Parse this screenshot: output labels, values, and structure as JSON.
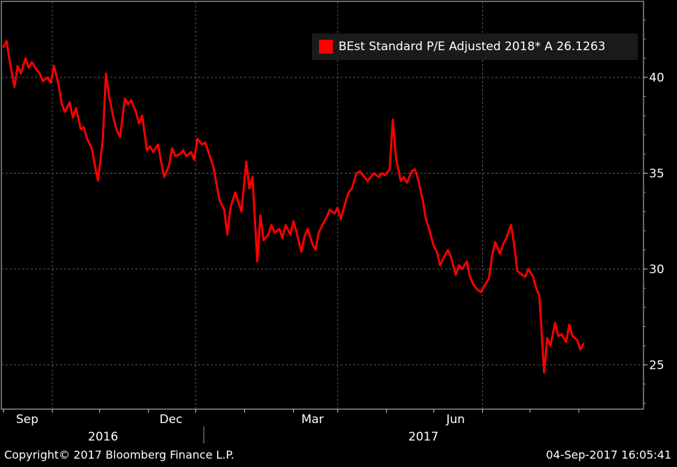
{
  "chart_data": {
    "type": "line",
    "title": "",
    "xlabel": "",
    "ylabel": "",
    "ylim": [
      22.5,
      43.5
    ],
    "y_ticks": [
      25,
      30,
      35,
      40
    ],
    "x_tick_labels": [
      "Sep",
      "Dec",
      "Mar",
      "Jun"
    ],
    "year_labels": [
      "2016",
      "2017"
    ],
    "grid": true,
    "legend_position": "top-right",
    "series": [
      {
        "name": "BEst Standard P/E Adjusted 2018* A 26.1263",
        "color": "#ff0000",
        "points": [
          [
            "2016-08-01",
            41.6
          ],
          [
            "2016-08-03",
            41.9
          ],
          [
            "2016-08-05",
            40.8
          ],
          [
            "2016-08-08",
            39.5
          ],
          [
            "2016-08-10",
            40.6
          ],
          [
            "2016-08-12",
            40.2
          ],
          [
            "2016-08-15",
            41.0
          ],
          [
            "2016-08-17",
            40.5
          ],
          [
            "2016-08-19",
            40.8
          ],
          [
            "2016-08-22",
            40.4
          ],
          [
            "2016-08-24",
            40.2
          ],
          [
            "2016-08-26",
            39.8
          ],
          [
            "2016-08-29",
            40.0
          ],
          [
            "2016-08-31",
            39.7
          ],
          [
            "2016-09-02",
            40.6
          ],
          [
            "2016-09-05",
            39.6
          ],
          [
            "2016-09-07",
            38.6
          ],
          [
            "2016-09-09",
            38.2
          ],
          [
            "2016-09-12",
            38.7
          ],
          [
            "2016-09-14",
            37.9
          ],
          [
            "2016-09-16",
            38.4
          ],
          [
            "2016-09-19",
            37.3
          ],
          [
            "2016-09-21",
            37.4
          ],
          [
            "2016-09-23",
            36.8
          ],
          [
            "2016-09-26",
            36.3
          ],
          [
            "2016-09-28",
            35.4
          ],
          [
            "2016-09-30",
            34.6
          ],
          [
            "2016-10-03",
            36.8
          ],
          [
            "2016-10-05",
            40.2
          ],
          [
            "2016-10-07",
            39.0
          ],
          [
            "2016-10-10",
            37.8
          ],
          [
            "2016-10-12",
            37.2
          ],
          [
            "2016-10-14",
            36.9
          ],
          [
            "2016-10-17",
            38.9
          ],
          [
            "2016-10-19",
            38.6
          ],
          [
            "2016-10-21",
            38.8
          ],
          [
            "2016-10-24",
            38.2
          ],
          [
            "2016-10-26",
            37.6
          ],
          [
            "2016-10-28",
            38.0
          ],
          [
            "2016-10-31",
            36.2
          ],
          [
            "2016-11-02",
            36.4
          ],
          [
            "2016-11-04",
            36.1
          ],
          [
            "2016-11-07",
            36.5
          ],
          [
            "2016-11-09",
            35.6
          ],
          [
            "2016-11-11",
            34.8
          ],
          [
            "2016-11-14",
            35.4
          ],
          [
            "2016-11-16",
            36.3
          ],
          [
            "2016-11-18",
            35.9
          ],
          [
            "2016-11-21",
            36.0
          ],
          [
            "2016-11-23",
            36.2
          ],
          [
            "2016-11-25",
            35.9
          ],
          [
            "2016-11-28",
            36.1
          ],
          [
            "2016-11-30",
            35.7
          ],
          [
            "2016-12-02",
            36.8
          ],
          [
            "2016-12-05",
            36.5
          ],
          [
            "2016-12-07",
            36.6
          ],
          [
            "2016-12-09",
            36.1
          ],
          [
            "2016-12-12",
            35.4
          ],
          [
            "2016-12-14",
            34.5
          ],
          [
            "2016-12-16",
            33.6
          ],
          [
            "2016-12-19",
            33.1
          ],
          [
            "2016-12-21",
            31.8
          ],
          [
            "2016-12-23",
            33.2
          ],
          [
            "2016-12-26",
            34.0
          ],
          [
            "2016-12-28",
            33.5
          ],
          [
            "2016-12-30",
            33.0
          ],
          [
            "2017-01-02",
            35.6
          ],
          [
            "2017-01-04",
            34.2
          ],
          [
            "2017-01-06",
            34.8
          ],
          [
            "2017-01-09",
            30.4
          ],
          [
            "2017-01-11",
            32.8
          ],
          [
            "2017-01-13",
            31.5
          ],
          [
            "2017-01-16",
            31.8
          ],
          [
            "2017-01-18",
            32.3
          ],
          [
            "2017-01-20",
            31.9
          ],
          [
            "2017-01-23",
            32.1
          ],
          [
            "2017-01-25",
            31.6
          ],
          [
            "2017-01-27",
            32.3
          ],
          [
            "2017-01-30",
            31.8
          ],
          [
            "2017-02-01",
            32.5
          ],
          [
            "2017-02-03",
            31.9
          ],
          [
            "2017-02-06",
            30.9
          ],
          [
            "2017-02-08",
            31.7
          ],
          [
            "2017-02-10",
            32.1
          ],
          [
            "2017-02-13",
            31.3
          ],
          [
            "2017-02-15",
            31.0
          ],
          [
            "2017-02-17",
            31.9
          ],
          [
            "2017-02-20",
            32.4
          ],
          [
            "2017-02-22",
            32.7
          ],
          [
            "2017-02-24",
            33.1
          ],
          [
            "2017-02-27",
            32.9
          ],
          [
            "2017-03-01",
            33.2
          ],
          [
            "2017-03-03",
            32.6
          ],
          [
            "2017-03-06",
            33.5
          ],
          [
            "2017-03-08",
            34.0
          ],
          [
            "2017-03-10",
            34.2
          ],
          [
            "2017-03-13",
            35.0
          ],
          [
            "2017-03-15",
            35.1
          ],
          [
            "2017-03-17",
            34.9
          ],
          [
            "2017-03-20",
            34.6
          ],
          [
            "2017-03-22",
            34.8
          ],
          [
            "2017-03-24",
            35.0
          ],
          [
            "2017-03-27",
            34.8
          ],
          [
            "2017-03-29",
            35.0
          ],
          [
            "2017-03-31",
            34.9
          ],
          [
            "2017-04-03",
            35.2
          ],
          [
            "2017-04-05",
            37.8
          ],
          [
            "2017-04-07",
            35.8
          ],
          [
            "2017-04-10",
            34.6
          ],
          [
            "2017-04-12",
            34.8
          ],
          [
            "2017-04-14",
            34.5
          ],
          [
            "2017-04-17",
            35.1
          ],
          [
            "2017-04-19",
            35.2
          ],
          [
            "2017-04-21",
            34.7
          ],
          [
            "2017-04-24",
            33.6
          ],
          [
            "2017-04-26",
            32.6
          ],
          [
            "2017-04-28",
            32.1
          ],
          [
            "2017-05-01",
            31.2
          ],
          [
            "2017-05-03",
            30.9
          ],
          [
            "2017-05-05",
            30.2
          ],
          [
            "2017-05-08",
            30.7
          ],
          [
            "2017-05-10",
            31.0
          ],
          [
            "2017-05-12",
            30.6
          ],
          [
            "2017-05-15",
            29.7
          ],
          [
            "2017-05-17",
            30.2
          ],
          [
            "2017-05-19",
            30.0
          ],
          [
            "2017-05-22",
            30.4
          ],
          [
            "2017-05-24",
            29.6
          ],
          [
            "2017-05-26",
            29.2
          ],
          [
            "2017-05-29",
            28.9
          ],
          [
            "2017-05-31",
            28.8
          ],
          [
            "2017-06-02",
            29.1
          ],
          [
            "2017-06-05",
            29.5
          ],
          [
            "2017-06-07",
            30.7
          ],
          [
            "2017-06-09",
            31.4
          ],
          [
            "2017-06-12",
            30.8
          ],
          [
            "2017-06-14",
            31.3
          ],
          [
            "2017-06-16",
            31.6
          ],
          [
            "2017-06-19",
            32.3
          ],
          [
            "2017-06-21",
            31.3
          ],
          [
            "2017-06-23",
            29.9
          ],
          [
            "2017-06-26",
            29.7
          ],
          [
            "2017-06-28",
            29.6
          ],
          [
            "2017-06-30",
            30.0
          ],
          [
            "2017-07-03",
            29.6
          ],
          [
            "2017-07-05",
            29.0
          ],
          [
            "2017-07-07",
            28.6
          ],
          [
            "2017-07-10",
            24.6
          ],
          [
            "2017-07-12",
            26.4
          ],
          [
            "2017-07-14",
            26.0
          ],
          [
            "2017-07-17",
            27.2
          ],
          [
            "2017-07-19",
            26.5
          ],
          [
            "2017-07-21",
            26.6
          ],
          [
            "2017-07-24",
            26.2
          ],
          [
            "2017-07-26",
            27.1
          ],
          [
            "2017-07-28",
            26.5
          ],
          [
            "2017-07-31",
            26.3
          ],
          [
            "2017-08-02",
            25.8
          ],
          [
            "2017-08-04",
            26.1
          ]
        ]
      }
    ]
  },
  "footer": {
    "copyright": "Copyright© 2017 Bloomberg Finance L.P.",
    "timestamp": "04-Sep-2017 16:05:41"
  }
}
